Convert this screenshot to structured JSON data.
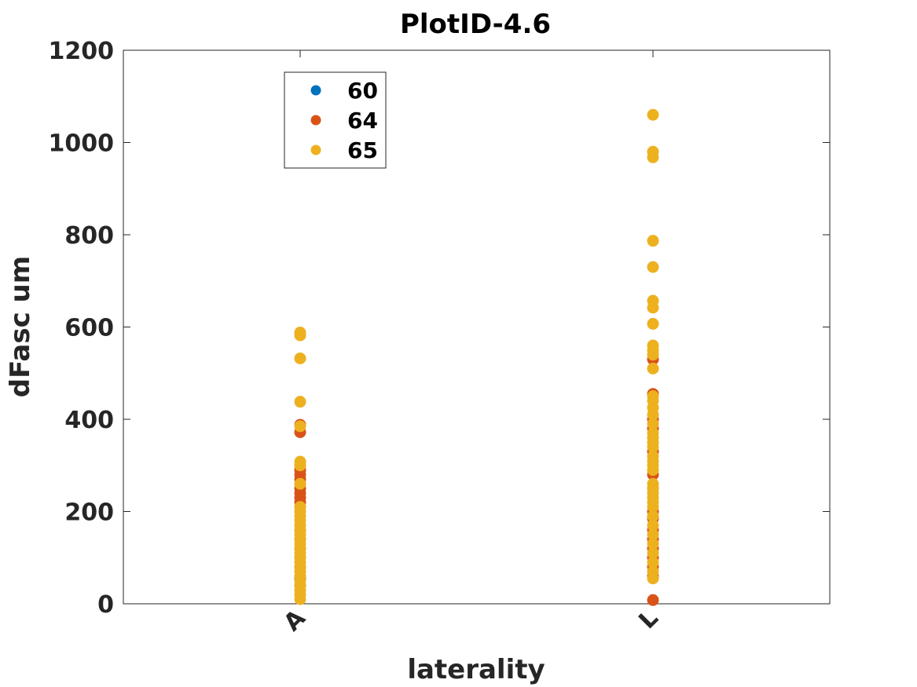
{
  "chart_data": {
    "type": "scatter",
    "title": "PlotID-4.6",
    "xlabel": "laterality",
    "ylabel": "dFasc um",
    "categories": [
      "A",
      "L"
    ],
    "ylim": [
      0,
      1200
    ],
    "yticks": [
      0,
      200,
      400,
      600,
      800,
      1000,
      1200
    ],
    "grid": false,
    "legend_position": "top-left",
    "series": [
      {
        "name": "60",
        "color": "#0072BD",
        "points": [
          {
            "x": "A",
            "y": 40
          },
          {
            "x": "A",
            "y": 55
          }
        ]
      },
      {
        "name": "64",
        "color": "#D95319",
        "points": [
          {
            "x": "A",
            "y": 372
          },
          {
            "x": "A",
            "y": 388
          },
          {
            "x": "A",
            "y": 300
          },
          {
            "x": "A",
            "y": 290
          },
          {
            "x": "A",
            "y": 280
          },
          {
            "x": "A",
            "y": 270
          },
          {
            "x": "A",
            "y": 260
          },
          {
            "x": "A",
            "y": 250
          },
          {
            "x": "A",
            "y": 240
          },
          {
            "x": "A",
            "y": 230
          },
          {
            "x": "A",
            "y": 220
          },
          {
            "x": "A",
            "y": 210
          },
          {
            "x": "A",
            "y": 160
          },
          {
            "x": "A",
            "y": 140
          },
          {
            "x": "A",
            "y": 120
          },
          {
            "x": "A",
            "y": 100
          },
          {
            "x": "A",
            "y": 80
          },
          {
            "x": "A",
            "y": 60
          },
          {
            "x": "L",
            "y": 8
          },
          {
            "x": "L",
            "y": 530
          },
          {
            "x": "L",
            "y": 455
          },
          {
            "x": "L",
            "y": 400
          },
          {
            "x": "L",
            "y": 380
          },
          {
            "x": "L",
            "y": 330
          },
          {
            "x": "L",
            "y": 280
          },
          {
            "x": "L",
            "y": 250
          },
          {
            "x": "L",
            "y": 200
          },
          {
            "x": "L",
            "y": 185
          },
          {
            "x": "L",
            "y": 160
          },
          {
            "x": "L",
            "y": 140
          },
          {
            "x": "L",
            "y": 120
          },
          {
            "x": "L",
            "y": 100
          },
          {
            "x": "L",
            "y": 80
          },
          {
            "x": "L",
            "y": 60
          }
        ]
      },
      {
        "name": "65",
        "color": "#EDB120",
        "points": [
          {
            "x": "A",
            "y": 588
          },
          {
            "x": "A",
            "y": 582
          },
          {
            "x": "A",
            "y": 532
          },
          {
            "x": "A",
            "y": 438
          },
          {
            "x": "A",
            "y": 385
          },
          {
            "x": "A",
            "y": 308
          },
          {
            "x": "A",
            "y": 300
          },
          {
            "x": "A",
            "y": 260
          },
          {
            "x": "A",
            "y": 210
          },
          {
            "x": "A",
            "y": 200
          },
          {
            "x": "A",
            "y": 190
          },
          {
            "x": "A",
            "y": 180
          },
          {
            "x": "A",
            "y": 170
          },
          {
            "x": "A",
            "y": 160
          },
          {
            "x": "A",
            "y": 150
          },
          {
            "x": "A",
            "y": 140
          },
          {
            "x": "A",
            "y": 130
          },
          {
            "x": "A",
            "y": 120
          },
          {
            "x": "A",
            "y": 110
          },
          {
            "x": "A",
            "y": 100
          },
          {
            "x": "A",
            "y": 90
          },
          {
            "x": "A",
            "y": 80
          },
          {
            "x": "A",
            "y": 70
          },
          {
            "x": "A",
            "y": 60
          },
          {
            "x": "A",
            "y": 50
          },
          {
            "x": "A",
            "y": 40
          },
          {
            "x": "A",
            "y": 30
          },
          {
            "x": "A",
            "y": 20
          },
          {
            "x": "A",
            "y": 10
          },
          {
            "x": "L",
            "y": 1060
          },
          {
            "x": "L",
            "y": 980
          },
          {
            "x": "L",
            "y": 968
          },
          {
            "x": "L",
            "y": 787
          },
          {
            "x": "L",
            "y": 730
          },
          {
            "x": "L",
            "y": 657
          },
          {
            "x": "L",
            "y": 642
          },
          {
            "x": "L",
            "y": 607
          },
          {
            "x": "L",
            "y": 560
          },
          {
            "x": "L",
            "y": 550
          },
          {
            "x": "L",
            "y": 540
          },
          {
            "x": "L",
            "y": 510
          },
          {
            "x": "L",
            "y": 450
          },
          {
            "x": "L",
            "y": 440
          },
          {
            "x": "L",
            "y": 425
          },
          {
            "x": "L",
            "y": 410
          },
          {
            "x": "L",
            "y": 390
          },
          {
            "x": "L",
            "y": 370
          },
          {
            "x": "L",
            "y": 360
          },
          {
            "x": "L",
            "y": 350
          },
          {
            "x": "L",
            "y": 340
          },
          {
            "x": "L",
            "y": 320
          },
          {
            "x": "L",
            "y": 310
          },
          {
            "x": "L",
            "y": 300
          },
          {
            "x": "L",
            "y": 290
          },
          {
            "x": "L",
            "y": 260
          },
          {
            "x": "L",
            "y": 250
          },
          {
            "x": "L",
            "y": 240
          },
          {
            "x": "L",
            "y": 230
          },
          {
            "x": "L",
            "y": 220
          },
          {
            "x": "L",
            "y": 210
          },
          {
            "x": "L",
            "y": 190
          },
          {
            "x": "L",
            "y": 170
          },
          {
            "x": "L",
            "y": 150
          },
          {
            "x": "L",
            "y": 130
          },
          {
            "x": "L",
            "y": 110
          },
          {
            "x": "L",
            "y": 90
          },
          {
            "x": "L",
            "y": 70
          },
          {
            "x": "L",
            "y": 55
          }
        ]
      }
    ]
  }
}
